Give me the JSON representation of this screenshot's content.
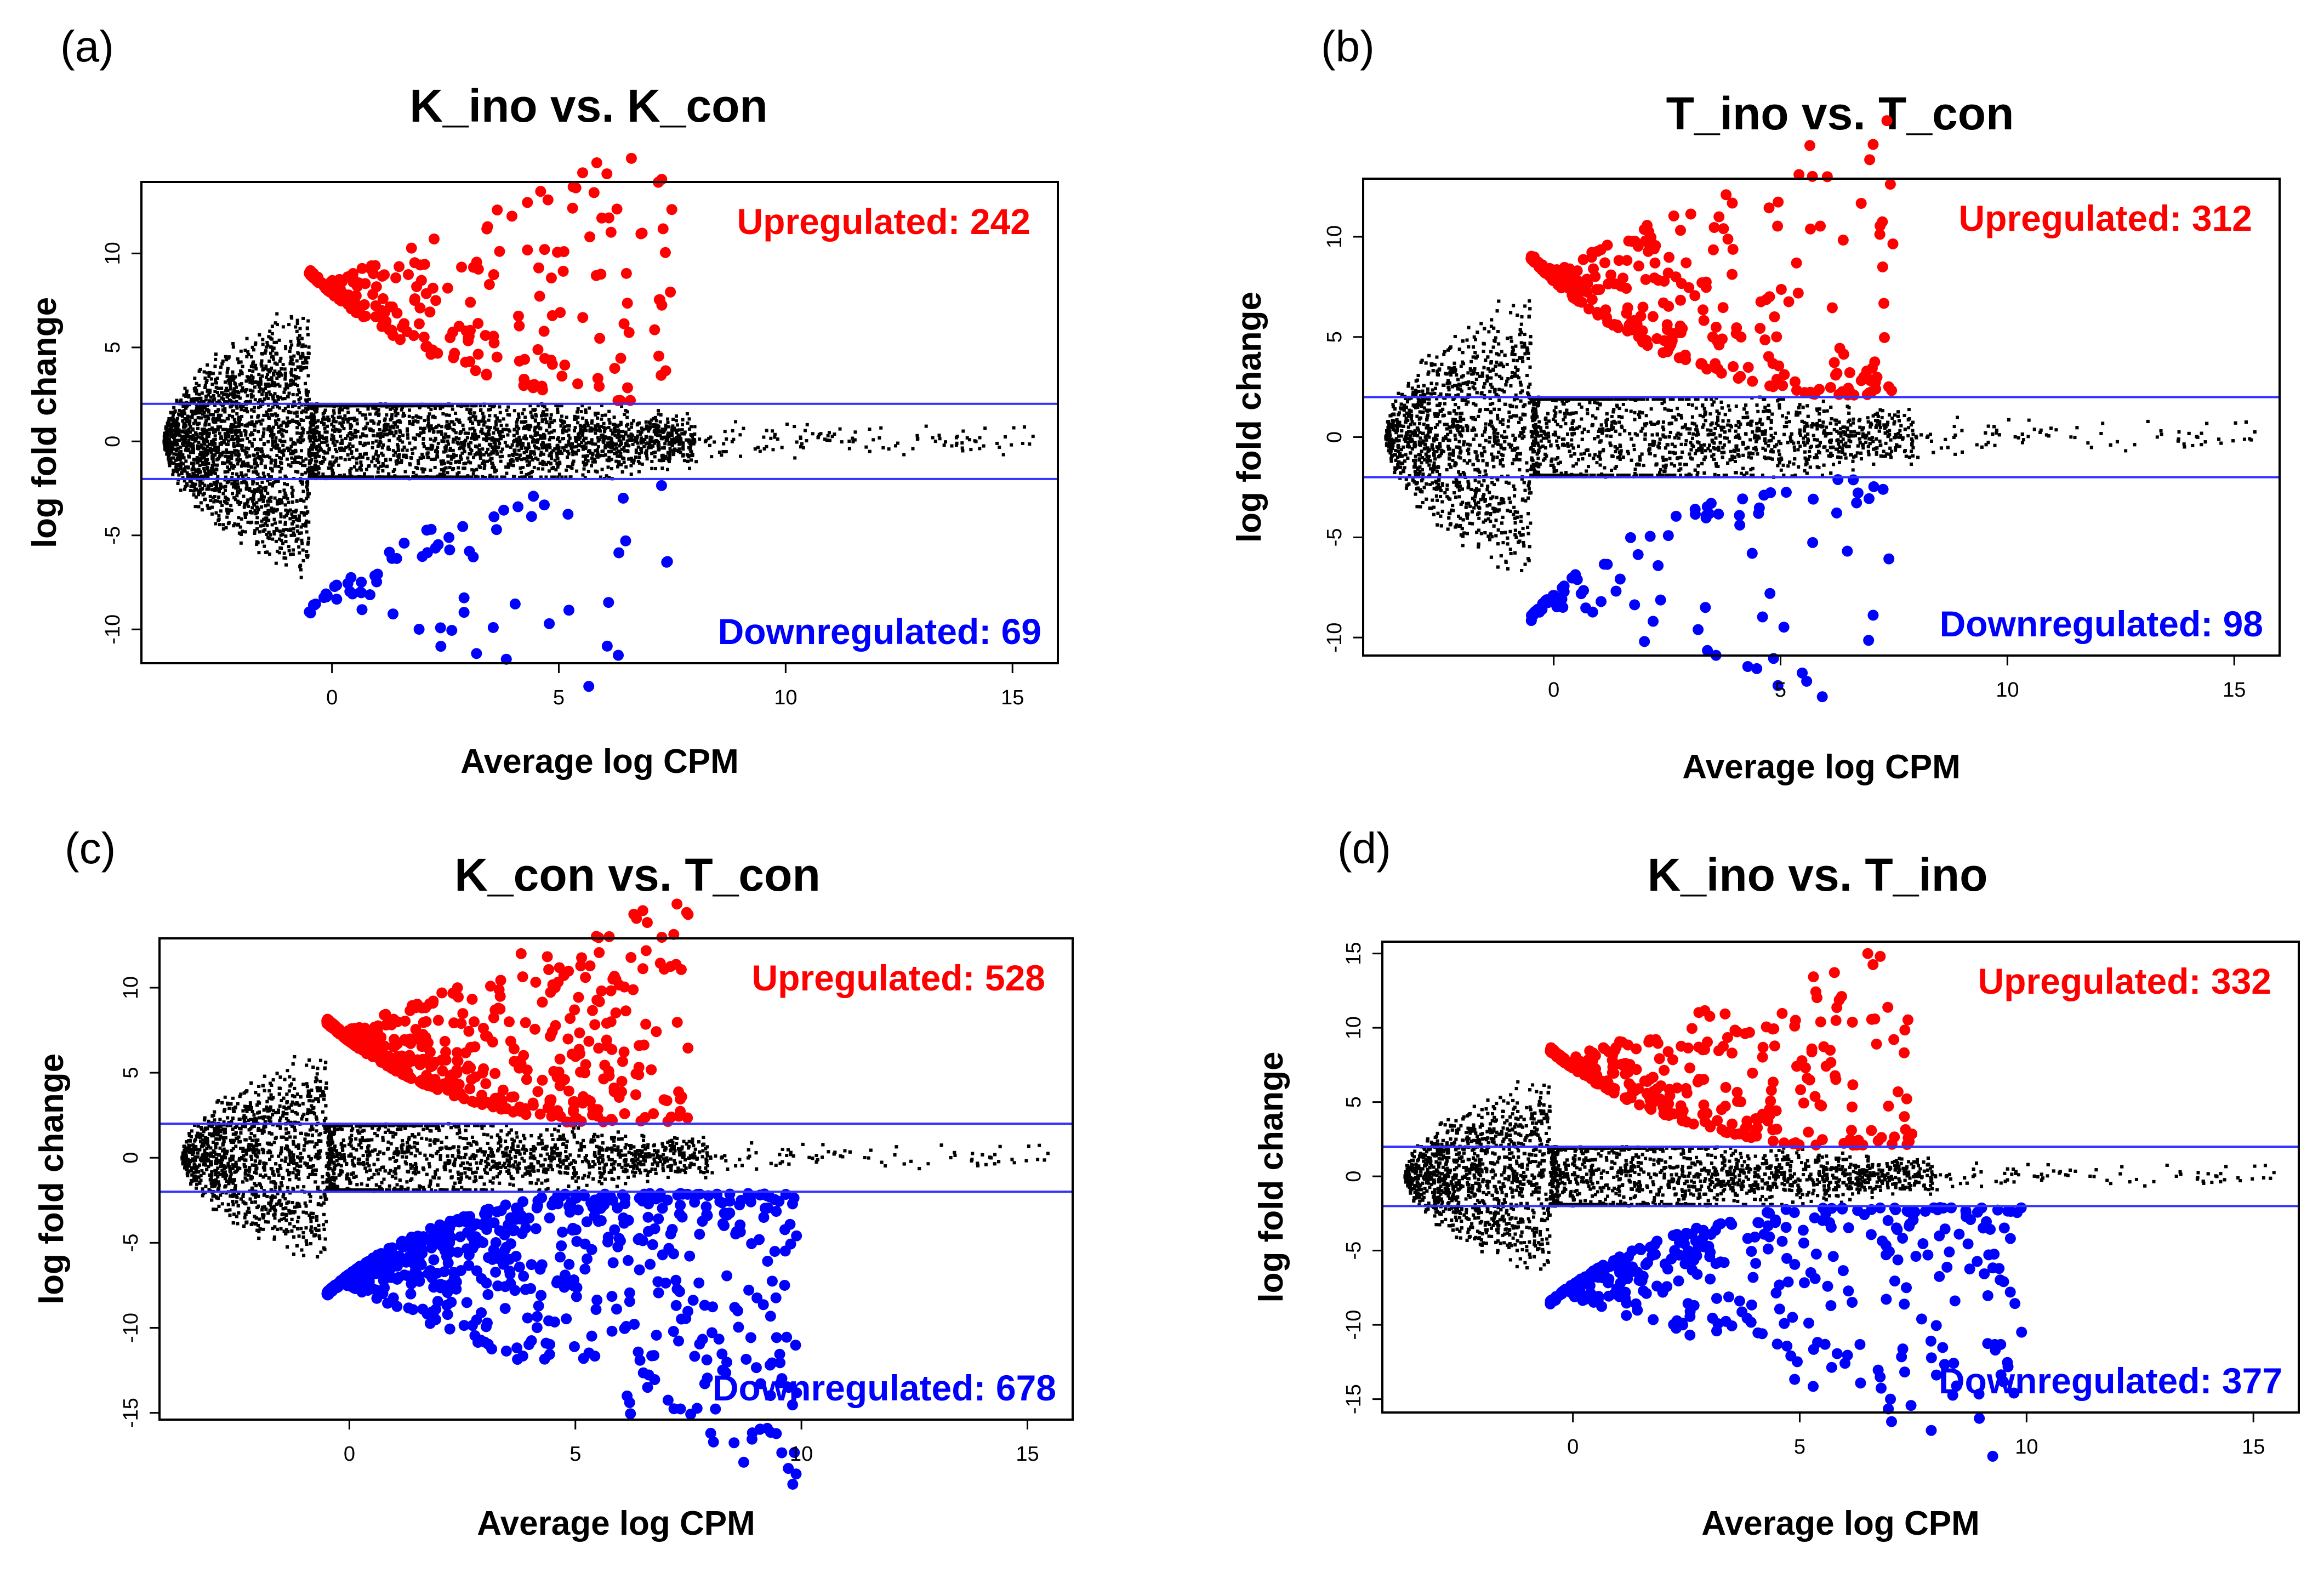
{
  "chart_data": [
    {
      "type": "scatter",
      "panel_label": "(a)",
      "title": "K_ino vs. K_con",
      "xlabel": "Average log CPM",
      "ylabel": "log fold change",
      "xlim": [
        -4.2,
        16
      ],
      "ylim": [
        -11.8,
        13.8
      ],
      "xticks": [
        "0",
        "5",
        "10",
        "15"
      ],
      "yticks": [
        "-10",
        "-5",
        "0",
        "5",
        "10"
      ],
      "thresholds": [
        2,
        -2
      ],
      "up_label": "Upregulated: 242",
      "down_label": "Downregulated: 69",
      "up_count": 242,
      "down_count": 69,
      "max_up": [
        4.6,
        13.3
      ],
      "min_down": [
        2.4,
        -10.9
      ]
    },
    {
      "type": "scatter",
      "panel_label": "(b)",
      "title": "T_ino vs. T_con",
      "xlabel": "Average log CPM",
      "ylabel": "log fold change",
      "xlim": [
        -4.2,
        16
      ],
      "ylim": [
        -10.9,
        12.9
      ],
      "xticks": [
        "0",
        "5",
        "10",
        "15"
      ],
      "yticks": [
        "-10",
        "-5",
        "0",
        "5",
        "10"
      ],
      "thresholds": [
        2,
        -2
      ],
      "up_label": "Upregulated: 312",
      "down_label": "Downregulated: 98",
      "up_count": 312,
      "down_count": 98,
      "max_up": [
        3.8,
        12.1
      ],
      "min_down": [
        2.0,
        -10.2
      ]
    },
    {
      "type": "scatter",
      "panel_label": "(c)",
      "title": "K_con vs. T_con",
      "xlabel": "Average log CPM",
      "ylabel": "log fold change",
      "xlim": [
        -4.2,
        16
      ],
      "ylim": [
        -15.4,
        12.9
      ],
      "xticks": [
        "0",
        "5",
        "10",
        "15"
      ],
      "yticks": [
        "-15",
        "-10",
        "-5",
        "0",
        "5",
        "10"
      ],
      "thresholds": [
        2,
        -2
      ],
      "up_label": "Upregulated: 528",
      "down_label": "Downregulated: 678",
      "up_count": 528,
      "down_count": 678,
      "max_up": [
        3.8,
        12.0
      ],
      "min_down": [
        6.2,
        -14.4
      ]
    },
    {
      "type": "scatter",
      "panel_label": "(d)",
      "title": "K_ino vs. T_ino",
      "xlabel": "Average log CPM",
      "ylabel": "log fold change",
      "xlim": [
        -4.2,
        16
      ],
      "ylim": [
        -15.9,
        15.8
      ],
      "xticks": [
        "0",
        "5",
        "10",
        "15"
      ],
      "yticks": [
        "-15",
        "-10",
        "-5",
        "0",
        "5",
        "10",
        "15"
      ],
      "thresholds": [
        2,
        -2
      ],
      "up_label": "Upregulated: 332",
      "down_label": "Downregulated: 377",
      "up_count": 332,
      "down_count": 377,
      "max_up": [
        6.5,
        15.0
      ],
      "min_down": [
        7.0,
        -15.0
      ]
    }
  ],
  "colors": {
    "up": "#ff0000",
    "down": "#0000ff",
    "ns": "#000000",
    "threshold": "#3333ff"
  }
}
